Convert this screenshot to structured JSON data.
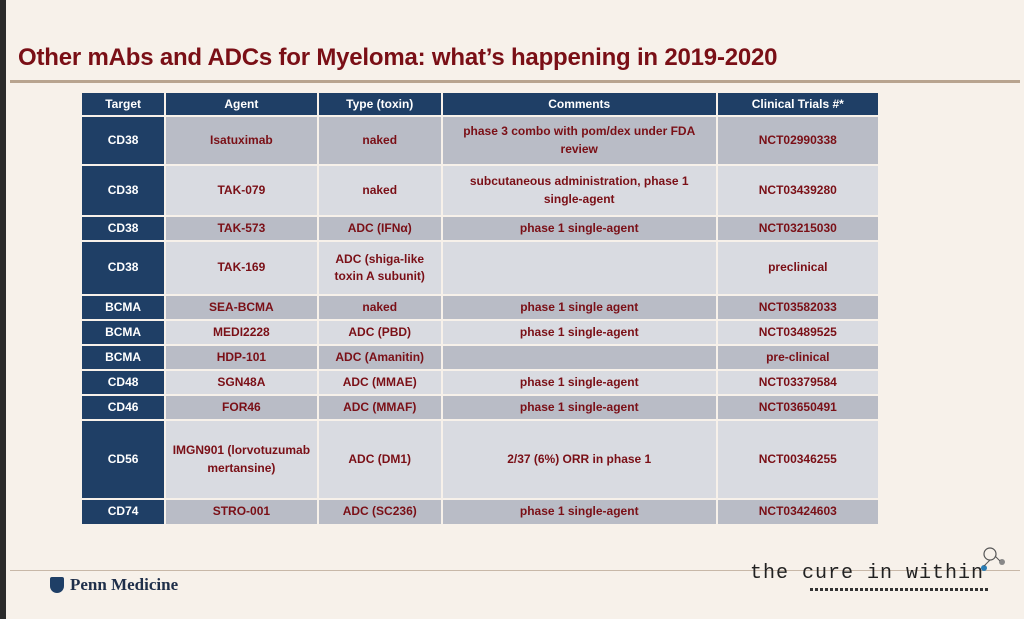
{
  "slide": {
    "title": "Other mAbs and ADCs for Myeloma: what’s happening in 2019-2020"
  },
  "table": {
    "headers": [
      "Target",
      "Agent",
      "Type (toxin)",
      "Comments",
      "Clinical Trials #*"
    ],
    "rows": [
      {
        "target": "CD38",
        "agent": "Isatuximab",
        "type": "naked",
        "comments": "phase 3 combo with pom/dex under FDA review",
        "trial": "NCT02990338"
      },
      {
        "target": "CD38",
        "agent": "TAK-079",
        "type": "naked",
        "comments": "subcutaneous administration, phase 1 single-agent",
        "trial": "NCT03439280"
      },
      {
        "target": "CD38",
        "agent": "TAK-573",
        "type": "ADC (IFNα)",
        "comments": "phase 1 single-agent",
        "trial": "NCT03215030"
      },
      {
        "target": "CD38",
        "agent": "TAK-169",
        "type": "ADC (shiga-like toxin A subunit)",
        "comments": "",
        "trial": "preclinical"
      },
      {
        "target": "BCMA",
        "agent": "SEA-BCMA",
        "type": "naked",
        "comments": "phase 1 single agent",
        "trial": "NCT03582033"
      },
      {
        "target": "BCMA",
        "agent": "MEDI2228",
        "type": "ADC (PBD)",
        "comments": "phase 1 single-agent",
        "trial": "NCT03489525"
      },
      {
        "target": "BCMA",
        "agent": "HDP-101",
        "type": "ADC (Amanitin)",
        "comments": "",
        "trial": "pre-clinical"
      },
      {
        "target": "CD48",
        "agent": "SGN48A",
        "type": "ADC (MMAE)",
        "comments": "phase 1 single-agent",
        "trial": "NCT03379584"
      },
      {
        "target": "CD46",
        "agent": "FOR46",
        "type": "ADC (MMAF)",
        "comments": "phase 1 single-agent",
        "trial": "NCT03650491"
      },
      {
        "target": "CD56",
        "agent": "IMGN901 (lorvotuzumab mertansine)",
        "type": "ADC (DM1)",
        "comments": "2/37 (6%) ORR in phase 1",
        "trial": "NCT00346255"
      },
      {
        "target": "CD74",
        "agent": "STRO-001",
        "type": "ADC (SC236)",
        "comments": "phase 1 single-agent",
        "trial": "NCT03424603"
      }
    ]
  },
  "footer": {
    "penn_label": "Penn Medicine",
    "cure_label": "the cure in within",
    "icons": [
      "penn-shield-icon",
      "molecule-icon"
    ]
  },
  "colors": {
    "title": "#7a0f16",
    "header_bg": "#1f3f66",
    "row_dark": "#b9bcc6",
    "row_light": "#d9dbe1",
    "cell_text": "#7a0f16"
  }
}
